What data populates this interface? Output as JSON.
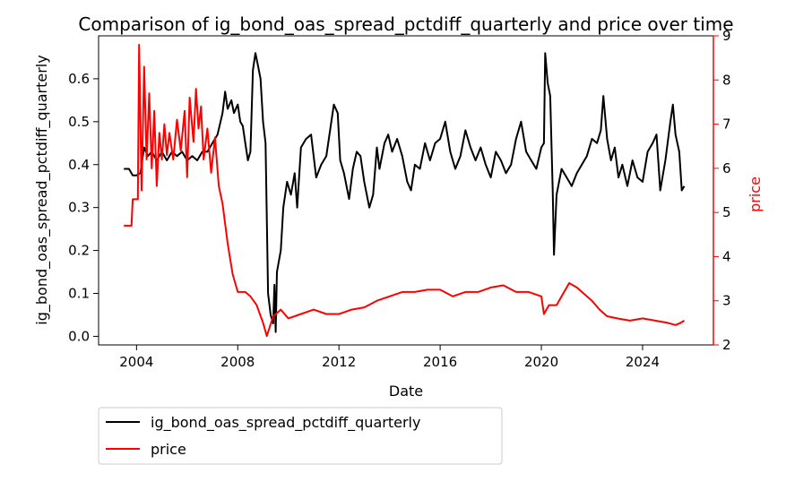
{
  "chart_data": {
    "type": "line",
    "title": "Comparison of ig_bond_oas_spread_pctdiff_quarterly and price over time",
    "xlabel": "Date",
    "ylabel_left": "ig_bond_oas_spread_pctdiff_quarterly",
    "ylabel_right": "price",
    "xlim": [
      2002.5,
      2026.8
    ],
    "ylim_left": [
      -0.02,
      0.7
    ],
    "ylim_right": [
      2.0,
      9.0
    ],
    "x_ticks": [
      2004,
      2008,
      2012,
      2016,
      2020,
      2024
    ],
    "x_tick_labels": [
      "2004",
      "2008",
      "2012",
      "2016",
      "2020",
      "2024"
    ],
    "y_left_ticks": [
      0.0,
      0.1,
      0.2,
      0.3,
      0.4,
      0.5,
      0.6
    ],
    "y_left_tick_labels": [
      "0.0",
      "0.1",
      "0.2",
      "0.3",
      "0.4",
      "0.5",
      "0.6"
    ],
    "y_right_ticks": [
      2,
      3,
      4,
      5,
      6,
      7,
      8,
      9
    ],
    "y_right_tick_labels": [
      "2",
      "3",
      "4",
      "5",
      "6",
      "7",
      "8",
      "9"
    ],
    "grid": false,
    "legend_placement": "below-left",
    "colors": {
      "spread": "#000000",
      "price": "#ff0000",
      "axis": "#000000",
      "right_axis": "#ff0000"
    },
    "series": [
      {
        "name": "ig_bond_oas_spread_pctdiff_quarterly",
        "axis": "left",
        "points": [
          [
            2003.5,
            0.39
          ],
          [
            2003.7,
            0.39
          ],
          [
            2003.85,
            0.375
          ],
          [
            2004.0,
            0.375
          ],
          [
            2004.15,
            0.38
          ],
          [
            2004.3,
            0.44
          ],
          [
            2004.45,
            0.42
          ],
          [
            2004.6,
            0.43
          ],
          [
            2004.8,
            0.41
          ],
          [
            2005.0,
            0.43
          ],
          [
            2005.2,
            0.41
          ],
          [
            2005.4,
            0.43
          ],
          [
            2005.6,
            0.42
          ],
          [
            2005.8,
            0.43
          ],
          [
            2006.0,
            0.41
          ],
          [
            2006.2,
            0.42
          ],
          [
            2006.4,
            0.41
          ],
          [
            2006.6,
            0.43
          ],
          [
            2006.8,
            0.43
          ],
          [
            2007.0,
            0.45
          ],
          [
            2007.2,
            0.47
          ],
          [
            2007.4,
            0.52
          ],
          [
            2007.5,
            0.57
          ],
          [
            2007.6,
            0.53
          ],
          [
            2007.75,
            0.55
          ],
          [
            2007.85,
            0.52
          ],
          [
            2008.0,
            0.54
          ],
          [
            2008.1,
            0.5
          ],
          [
            2008.2,
            0.49
          ],
          [
            2008.3,
            0.45
          ],
          [
            2008.4,
            0.41
          ],
          [
            2008.5,
            0.43
          ],
          [
            2008.6,
            0.62
          ],
          [
            2008.7,
            0.66
          ],
          [
            2008.8,
            0.63
          ],
          [
            2008.9,
            0.6
          ],
          [
            2009.0,
            0.5
          ],
          [
            2009.1,
            0.45
          ],
          [
            2009.2,
            0.1
          ],
          [
            2009.3,
            0.05
          ],
          [
            2009.4,
            0.03
          ],
          [
            2009.45,
            0.12
          ],
          [
            2009.5,
            0.01
          ],
          [
            2009.55,
            0.15
          ],
          [
            2009.7,
            0.2
          ],
          [
            2009.8,
            0.3
          ],
          [
            2009.95,
            0.36
          ],
          [
            2010.1,
            0.33
          ],
          [
            2010.25,
            0.38
          ],
          [
            2010.35,
            0.3
          ],
          [
            2010.5,
            0.44
          ],
          [
            2010.7,
            0.46
          ],
          [
            2010.9,
            0.47
          ],
          [
            2011.1,
            0.37
          ],
          [
            2011.3,
            0.4
          ],
          [
            2011.5,
            0.42
          ],
          [
            2011.7,
            0.5
          ],
          [
            2011.8,
            0.54
          ],
          [
            2011.95,
            0.52
          ],
          [
            2012.05,
            0.41
          ],
          [
            2012.2,
            0.38
          ],
          [
            2012.4,
            0.32
          ],
          [
            2012.55,
            0.39
          ],
          [
            2012.7,
            0.43
          ],
          [
            2012.85,
            0.42
          ],
          [
            2013.0,
            0.36
          ],
          [
            2013.2,
            0.3
          ],
          [
            2013.35,
            0.33
          ],
          [
            2013.5,
            0.44
          ],
          [
            2013.6,
            0.39
          ],
          [
            2013.8,
            0.45
          ],
          [
            2013.95,
            0.47
          ],
          [
            2014.1,
            0.43
          ],
          [
            2014.3,
            0.46
          ],
          [
            2014.5,
            0.42
          ],
          [
            2014.7,
            0.36
          ],
          [
            2014.85,
            0.34
          ],
          [
            2015.0,
            0.4
          ],
          [
            2015.2,
            0.39
          ],
          [
            2015.4,
            0.45
          ],
          [
            2015.6,
            0.41
          ],
          [
            2015.8,
            0.45
          ],
          [
            2016.0,
            0.46
          ],
          [
            2016.2,
            0.5
          ],
          [
            2016.4,
            0.43
          ],
          [
            2016.6,
            0.39
          ],
          [
            2016.8,
            0.42
          ],
          [
            2017.0,
            0.48
          ],
          [
            2017.2,
            0.44
          ],
          [
            2017.4,
            0.41
          ],
          [
            2017.6,
            0.44
          ],
          [
            2017.8,
            0.4
          ],
          [
            2018.0,
            0.37
          ],
          [
            2018.2,
            0.43
          ],
          [
            2018.4,
            0.41
          ],
          [
            2018.6,
            0.38
          ],
          [
            2018.8,
            0.4
          ],
          [
            2019.0,
            0.46
          ],
          [
            2019.2,
            0.5
          ],
          [
            2019.4,
            0.43
          ],
          [
            2019.6,
            0.41
          ],
          [
            2019.8,
            0.39
          ],
          [
            2020.0,
            0.44
          ],
          [
            2020.1,
            0.45
          ],
          [
            2020.15,
            0.66
          ],
          [
            2020.25,
            0.59
          ],
          [
            2020.35,
            0.56
          ],
          [
            2020.45,
            0.34
          ],
          [
            2020.5,
            0.19
          ],
          [
            2020.6,
            0.33
          ],
          [
            2020.8,
            0.39
          ],
          [
            2021.0,
            0.37
          ],
          [
            2021.2,
            0.35
          ],
          [
            2021.4,
            0.38
          ],
          [
            2021.6,
            0.4
          ],
          [
            2021.8,
            0.42
          ],
          [
            2022.0,
            0.46
          ],
          [
            2022.2,
            0.45
          ],
          [
            2022.35,
            0.48
          ],
          [
            2022.45,
            0.56
          ],
          [
            2022.6,
            0.46
          ],
          [
            2022.75,
            0.41
          ],
          [
            2022.9,
            0.44
          ],
          [
            2023.05,
            0.37
          ],
          [
            2023.2,
            0.4
          ],
          [
            2023.4,
            0.35
          ],
          [
            2023.6,
            0.41
          ],
          [
            2023.8,
            0.37
          ],
          [
            2024.0,
            0.36
          ],
          [
            2024.2,
            0.43
          ],
          [
            2024.4,
            0.45
          ],
          [
            2024.55,
            0.47
          ],
          [
            2024.7,
            0.34
          ],
          [
            2024.9,
            0.41
          ],
          [
            2025.1,
            0.5
          ],
          [
            2025.2,
            0.54
          ],
          [
            2025.3,
            0.47
          ],
          [
            2025.45,
            0.43
          ],
          [
            2025.55,
            0.34
          ],
          [
            2025.65,
            0.35
          ]
        ]
      },
      {
        "name": "price",
        "axis": "right",
        "points": [
          [
            2003.5,
            4.7
          ],
          [
            2003.8,
            4.7
          ],
          [
            2003.85,
            5.3
          ],
          [
            2004.05,
            5.3
          ],
          [
            2004.1,
            8.8
          ],
          [
            2004.2,
            5.5
          ],
          [
            2004.3,
            8.3
          ],
          [
            2004.4,
            6.2
          ],
          [
            2004.5,
            7.7
          ],
          [
            2004.6,
            6.0
          ],
          [
            2004.7,
            7.3
          ],
          [
            2004.8,
            5.6
          ],
          [
            2004.9,
            6.8
          ],
          [
            2005.0,
            6.2
          ],
          [
            2005.1,
            7.0
          ],
          [
            2005.2,
            6.3
          ],
          [
            2005.3,
            6.8
          ],
          [
            2005.45,
            6.2
          ],
          [
            2005.6,
            7.1
          ],
          [
            2005.75,
            6.4
          ],
          [
            2005.9,
            7.3
          ],
          [
            2006.0,
            5.8
          ],
          [
            2006.1,
            7.6
          ],
          [
            2006.25,
            6.6
          ],
          [
            2006.35,
            7.8
          ],
          [
            2006.45,
            6.9
          ],
          [
            2006.55,
            7.4
          ],
          [
            2006.65,
            6.2
          ],
          [
            2006.8,
            6.9
          ],
          [
            2006.95,
            5.9
          ],
          [
            2007.1,
            6.7
          ],
          [
            2007.25,
            5.6
          ],
          [
            2007.4,
            5.2
          ],
          [
            2007.6,
            4.3
          ],
          [
            2007.8,
            3.6
          ],
          [
            2008.0,
            3.2
          ],
          [
            2008.3,
            3.2
          ],
          [
            2008.5,
            3.1
          ],
          [
            2008.75,
            2.9
          ],
          [
            2009.0,
            2.5
          ],
          [
            2009.15,
            2.2
          ],
          [
            2009.4,
            2.65
          ],
          [
            2009.7,
            2.8
          ],
          [
            2010.0,
            2.6
          ],
          [
            2010.5,
            2.7
          ],
          [
            2011.0,
            2.8
          ],
          [
            2011.5,
            2.7
          ],
          [
            2012.0,
            2.7
          ],
          [
            2012.5,
            2.8
          ],
          [
            2013.0,
            2.85
          ],
          [
            2013.5,
            3.0
          ],
          [
            2014.0,
            3.1
          ],
          [
            2014.5,
            3.2
          ],
          [
            2015.0,
            3.2
          ],
          [
            2015.5,
            3.25
          ],
          [
            2016.0,
            3.25
          ],
          [
            2016.5,
            3.1
          ],
          [
            2017.0,
            3.2
          ],
          [
            2017.5,
            3.2
          ],
          [
            2018.0,
            3.3
          ],
          [
            2018.5,
            3.35
          ],
          [
            2019.0,
            3.2
          ],
          [
            2019.5,
            3.2
          ],
          [
            2020.0,
            3.1
          ],
          [
            2020.1,
            2.7
          ],
          [
            2020.3,
            2.9
          ],
          [
            2020.6,
            2.9
          ],
          [
            2020.9,
            3.2
          ],
          [
            2021.1,
            3.4
          ],
          [
            2021.4,
            3.3
          ],
          [
            2021.7,
            3.15
          ],
          [
            2022.0,
            3.0
          ],
          [
            2022.3,
            2.8
          ],
          [
            2022.6,
            2.65
          ],
          [
            2023.0,
            2.6
          ],
          [
            2023.5,
            2.55
          ],
          [
            2024.0,
            2.6
          ],
          [
            2024.5,
            2.55
          ],
          [
            2025.0,
            2.5
          ],
          [
            2025.3,
            2.45
          ],
          [
            2025.5,
            2.5
          ],
          [
            2025.65,
            2.55
          ]
        ]
      }
    ]
  }
}
